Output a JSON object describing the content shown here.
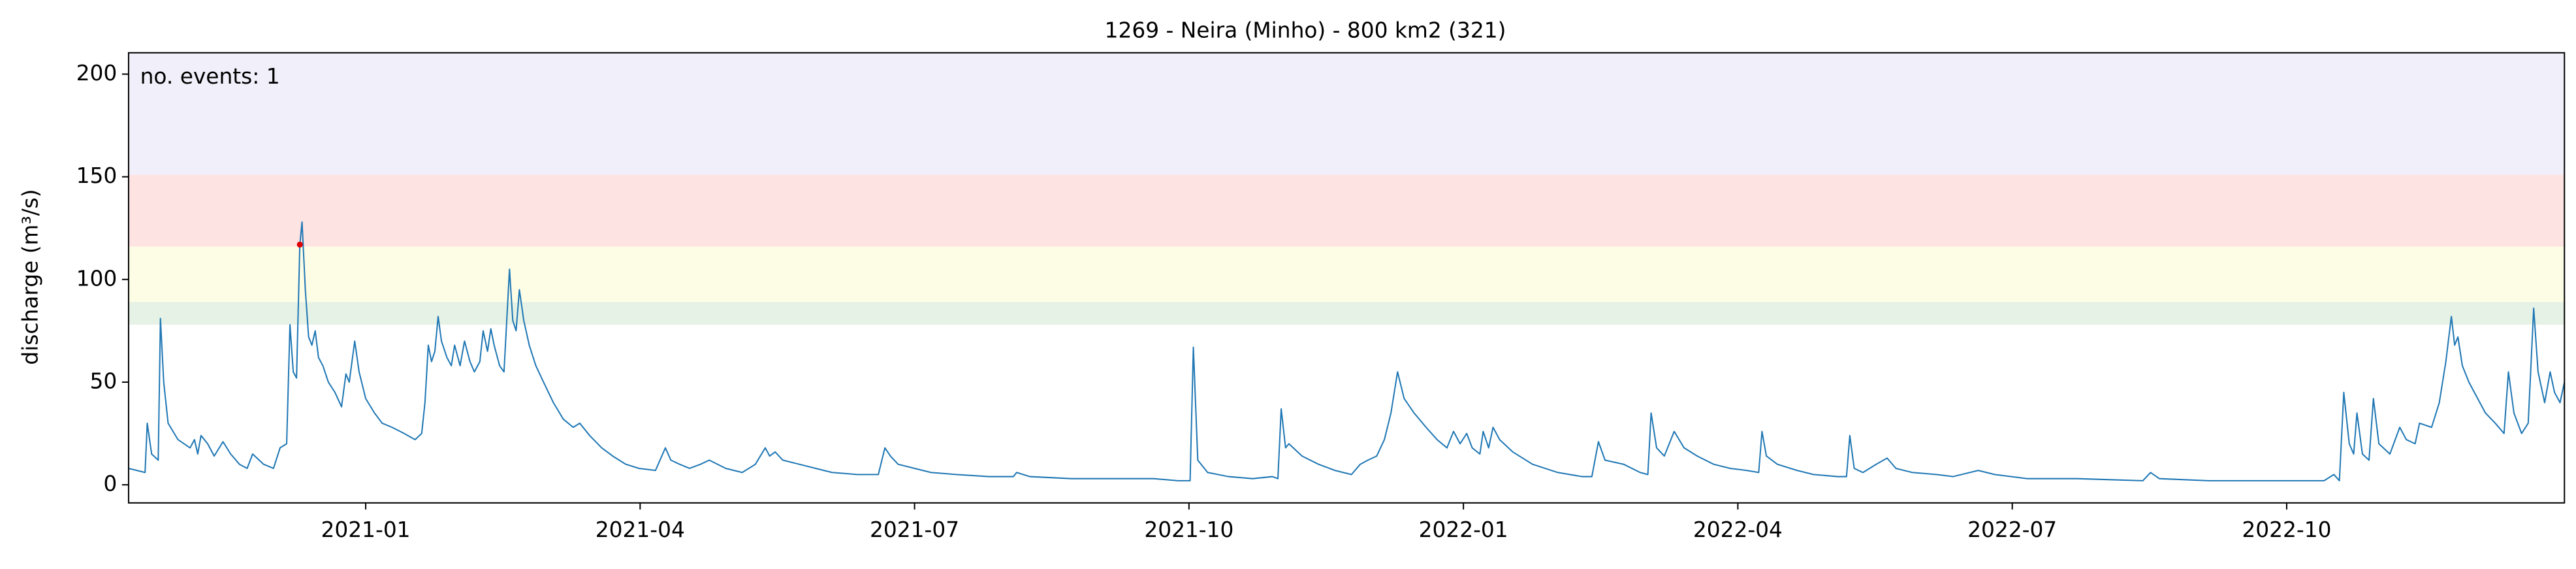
{
  "chart_data": {
    "type": "line",
    "title": "1269 - Neira (Minho) - 800 km2 (321)",
    "y_label": "discharge (m³/s)",
    "annotation": "no. events: 1",
    "annotation_color": "#e00000",
    "xlim": [
      2020.784,
      2023.003
    ],
    "xticks": [
      {
        "value": 2021.0,
        "label": "2021-01"
      },
      {
        "value": 2021.25,
        "label": "2021-04"
      },
      {
        "value": 2021.5,
        "label": "2021-07"
      },
      {
        "value": 2021.75,
        "label": "2021-10"
      },
      {
        "value": 2022.0,
        "label": "2022-01"
      },
      {
        "value": 2022.25,
        "label": "2022-04"
      },
      {
        "value": 2022.5,
        "label": "2022-07"
      },
      {
        "value": 2022.75,
        "label": "2022-10"
      }
    ],
    "ylim": [
      -8.8,
      210.4
    ],
    "yticks": [
      0,
      50,
      100,
      150,
      200
    ],
    "thresholds": [
      78,
      89,
      116,
      151
    ],
    "threshold_colors": [
      "#e5f2e5",
      "#fdfde6",
      "#fee3e3",
      "#f1eff9"
    ],
    "series": [
      {
        "color": "#1f77b4",
        "x": [
          2020.784,
          2020.799,
          2020.801,
          2020.805,
          2020.811,
          2020.813,
          2020.816,
          2020.82,
          2020.829,
          2020.84,
          2020.844,
          2020.847,
          2020.85,
          2020.856,
          2020.862,
          2020.87,
          2020.877,
          2020.885,
          2020.892,
          2020.897,
          2020.907,
          2020.916,
          2020.922,
          2020.928,
          2020.931,
          2020.934,
          2020.937,
          2020.94,
          2020.942,
          2020.945,
          2020.948,
          2020.951,
          2020.954,
          2020.957,
          2020.961,
          2020.966,
          2020.972,
          2020.978,
          2020.982,
          2020.985,
          2020.99,
          2020.994,
          2021.0,
          2021.008,
          2021.015,
          2021.024,
          2021.035,
          2021.045,
          2021.051,
          2021.054,
          2021.057,
          2021.06,
          2021.063,
          2021.066,
          2021.069,
          2021.074,
          2021.078,
          2021.081,
          2021.086,
          2021.09,
          2021.095,
          2021.099,
          2021.104,
          2021.107,
          2021.111,
          2021.114,
          2021.117,
          2021.122,
          2021.126,
          2021.131,
          2021.134,
          2021.137,
          2021.14,
          2021.144,
          2021.149,
          2021.155,
          2021.162,
          2021.171,
          2021.18,
          2021.189,
          2021.195,
          2021.204,
          2021.215,
          2021.225,
          2021.237,
          2021.249,
          2021.264,
          2021.273,
          2021.278,
          2021.286,
          2021.295,
          2021.305,
          2021.313,
          2021.328,
          2021.343,
          2021.355,
          2021.364,
          2021.368,
          2021.373,
          2021.38,
          2021.395,
          2021.41,
          2021.425,
          2021.448,
          2021.467,
          2021.473,
          2021.478,
          2021.485,
          2021.5,
          2021.515,
          2021.538,
          2021.568,
          2021.59,
          2021.593,
          2021.605,
          2021.643,
          2021.688,
          2021.718,
          2021.74,
          2021.751,
          2021.754,
          2021.758,
          2021.767,
          2021.786,
          2021.808,
          2021.826,
          2021.831,
          2021.834,
          2021.838,
          2021.841,
          2021.853,
          2021.868,
          2021.883,
          2021.898,
          2021.906,
          2021.913,
          2021.921,
          2021.928,
          2021.934,
          2021.94,
          2021.946,
          2021.955,
          2021.966,
          2021.976,
          2021.985,
          2021.991,
          2021.997,
          2022.003,
          2022.008,
          2022.015,
          2022.018,
          2022.023,
          2022.027,
          2022.033,
          2022.045,
          2022.063,
          2022.086,
          2022.108,
          2022.117,
          2022.123,
          2022.129,
          2022.146,
          2022.161,
          2022.168,
          2022.171,
          2022.176,
          2022.183,
          2022.192,
          2022.201,
          2022.213,
          2022.228,
          2022.243,
          2022.258,
          2022.269,
          2022.272,
          2022.276,
          2022.286,
          2022.304,
          2022.319,
          2022.341,
          2022.349,
          2022.352,
          2022.356,
          2022.364,
          2022.376,
          2022.386,
          2022.394,
          2022.409,
          2022.431,
          2022.446,
          2022.469,
          2022.484,
          2022.514,
          2022.559,
          2022.619,
          2022.626,
          2022.634,
          2022.679,
          2022.739,
          2022.784,
          2022.793,
          2022.798,
          2022.802,
          2022.807,
          2022.811,
          2022.814,
          2022.819,
          2022.825,
          2022.829,
          2022.834,
          2022.844,
          2022.853,
          2022.859,
          2022.867,
          2022.871,
          2022.882,
          2022.889,
          2022.895,
          2022.9,
          2022.903,
          2022.906,
          2022.91,
          2022.916,
          2022.924,
          2022.931,
          2022.94,
          2022.948,
          2022.952,
          2022.957,
          2022.964,
          2022.97,
          2022.975,
          2022.979,
          2022.985,
          2022.99,
          2022.994,
          2022.999,
          2023.003
        ],
        "values": [
          8,
          6,
          30,
          15,
          12,
          81,
          50,
          30,
          22,
          18,
          22,
          15,
          24,
          20,
          14,
          21,
          15,
          10,
          8,
          15,
          10,
          8,
          18,
          20,
          78,
          55,
          52,
          117,
          128,
          95,
          72,
          68,
          75,
          62,
          58,
          50,
          45,
          38,
          54,
          50,
          70,
          55,
          42,
          35,
          30,
          28,
          25,
          22,
          25,
          40,
          68,
          60,
          65,
          82,
          70,
          62,
          58,
          68,
          58,
          70,
          60,
          55,
          60,
          75,
          65,
          76,
          68,
          58,
          55,
          105,
          80,
          75,
          95,
          80,
          68,
          58,
          50,
          40,
          32,
          28,
          30,
          24,
          18,
          14,
          10,
          8,
          7,
          18,
          12,
          10,
          8,
          10,
          12,
          8,
          6,
          10,
          18,
          14,
          16,
          12,
          10,
          8,
          6,
          5,
          5,
          18,
          14,
          10,
          8,
          6,
          5,
          4,
          4,
          6,
          4,
          3,
          3,
          3,
          2,
          2,
          67,
          12,
          6,
          4,
          3,
          4,
          3,
          37,
          18,
          20,
          14,
          10,
          7,
          5,
          10,
          12,
          14,
          22,
          35,
          55,
          42,
          35,
          28,
          22,
          18,
          26,
          20,
          25,
          18,
          15,
          26,
          18,
          28,
          22,
          16,
          10,
          6,
          4,
          4,
          21,
          12,
          10,
          6,
          5,
          35,
          18,
          14,
          26,
          18,
          14,
          10,
          8,
          7,
          6,
          26,
          14,
          10,
          7,
          5,
          4,
          4,
          24,
          8,
          6,
          10,
          13,
          8,
          6,
          5,
          4,
          7,
          5,
          3,
          3,
          2,
          6,
          3,
          2,
          2,
          2,
          5,
          2,
          45,
          20,
          15,
          35,
          15,
          12,
          42,
          20,
          15,
          28,
          22,
          20,
          30,
          28,
          40,
          60,
          82,
          68,
          72,
          58,
          50,
          42,
          35,
          30,
          25,
          55,
          35,
          25,
          30,
          86,
          55,
          40,
          55,
          45,
          40,
          50
        ]
      }
    ],
    "events": {
      "color": "#e00000",
      "x": [
        2020.94
      ],
      "values": [
        117
      ]
    }
  }
}
